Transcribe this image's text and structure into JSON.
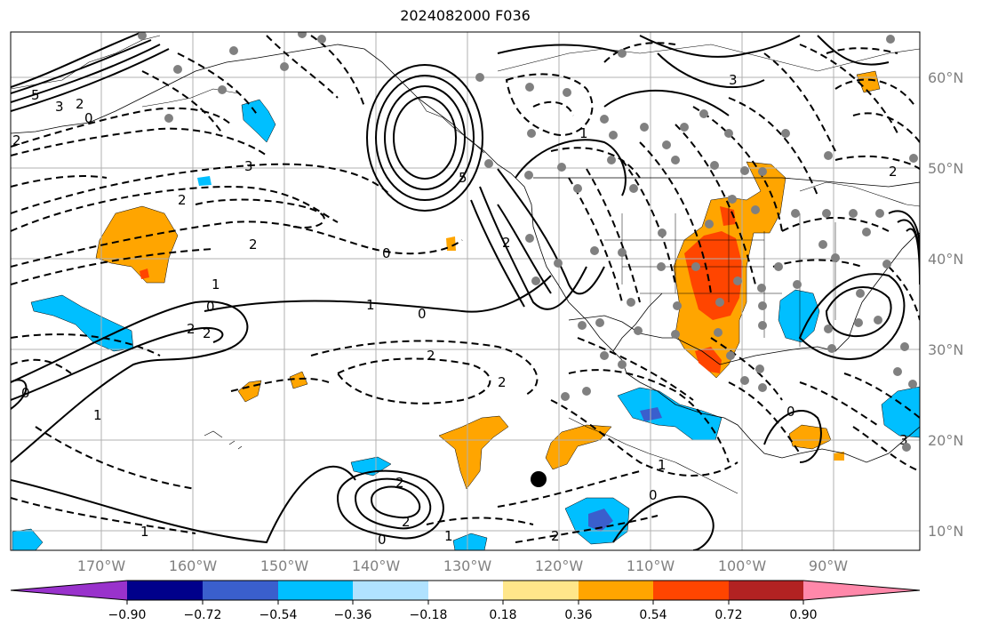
{
  "title": "2024082000 F036",
  "longitude_labels": [
    "170°W",
    "160°W",
    "150°W",
    "140°W",
    "130°W",
    "120°W",
    "110°W",
    "100°W",
    "90°W"
  ],
  "latitude_labels": [
    "60°N",
    "50°N",
    "40°N",
    "30°N",
    "20°N",
    "10°N"
  ],
  "colorbar": {
    "tick_labels": [
      "−0.90",
      "−0.72",
      "−0.54",
      "−0.36",
      "−0.18",
      "0.18",
      "0.36",
      "0.54",
      "0.72",
      "0.90"
    ],
    "colors": [
      "#9932cc",
      "#00008b",
      "#3a5fcd",
      "#00bfff",
      "#b0e2ff",
      "#ffffff",
      "#ffe68a",
      "#ffa500",
      "#ff4500",
      "#b22222",
      "#ff88aa"
    ]
  },
  "contour_labels": [
    "5",
    "3",
    "2",
    "0",
    "2",
    "3",
    "5",
    "0",
    "2",
    "2",
    "3",
    "2",
    "1",
    "0",
    "2",
    "2",
    "1",
    "0",
    "2",
    "2",
    "1",
    "0",
    "2",
    "1",
    "0",
    "1",
    "2",
    "0",
    "2",
    "1",
    "0",
    "3",
    "2",
    "1"
  ],
  "colors": {
    "station_dot": "#808080",
    "marker_dot": "#000000",
    "grid": "#b0b0b0"
  }
}
